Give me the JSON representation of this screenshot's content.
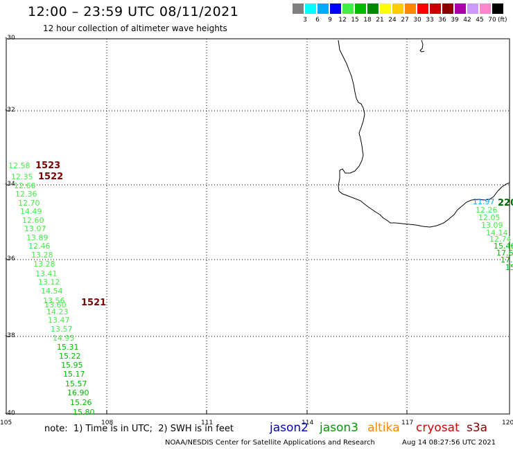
{
  "header": {
    "title": "12:00 – 23:59 UTC 08/11/2021",
    "subtitle": "12 hour collection of altimeter wave heights"
  },
  "legend": {
    "colors": [
      "#808080",
      "#00ffff",
      "#00aaff",
      "#0000ff",
      "#44ee44",
      "#00bb00",
      "#008800",
      "#ffff00",
      "#ffcc00",
      "#ff8800",
      "#ff0000",
      "#cc0000",
      "#880000",
      "#aa00aa",
      "#cc99ff",
      "#ff88cc",
      "#000000"
    ],
    "labels": [
      "3",
      "6",
      "9",
      "12",
      "15",
      "18",
      "21",
      "24",
      "27",
      "30",
      "33",
      "36",
      "39",
      "42",
      "45",
      "70"
    ],
    "unit": "(ft)"
  },
  "axes": {
    "lat_labels": [
      "-30",
      "-32",
      "-34",
      "-36",
      "-38",
      "-40"
    ],
    "lon_labels": [
      "105",
      "108",
      "111",
      "114",
      "117",
      "120"
    ]
  },
  "tracks": {
    "west": [
      {
        "v": "12.58",
        "c": "#44ee44"
      },
      {
        "v": "12.35",
        "c": "#44ee44"
      },
      {
        "v": "12.66",
        "c": "#44ee44"
      },
      {
        "v": "12.36",
        "c": "#44ee44"
      },
      {
        "v": "12.70",
        "c": "#44ee44"
      },
      {
        "v": "14.49",
        "c": "#44ee44"
      },
      {
        "v": "12.60",
        "c": "#44ee44"
      },
      {
        "v": "13.07",
        "c": "#44ee44"
      },
      {
        "v": "13.89",
        "c": "#44ee44"
      },
      {
        "v": "12.46",
        "c": "#44ee44"
      },
      {
        "v": "13.28",
        "c": "#44ee44"
      },
      {
        "v": "13.28",
        "c": "#44ee44"
      },
      {
        "v": "13.41",
        "c": "#44ee44"
      },
      {
        "v": "13.12",
        "c": "#44ee44"
      },
      {
        "v": "14.54",
        "c": "#44ee44"
      },
      {
        "v": "13.56",
        "c": "#44ee44"
      },
      {
        "v": "13.60",
        "c": "#44ee44"
      },
      {
        "v": "14.23",
        "c": "#44ee44"
      },
      {
        "v": "13.47",
        "c": "#44ee44"
      },
      {
        "v": "13.57",
        "c": "#44ee44"
      },
      {
        "v": "14.95",
        "c": "#44ee44"
      },
      {
        "v": "15.31",
        "c": "#00bb00"
      },
      {
        "v": "15.22",
        "c": "#00bb00"
      },
      {
        "v": "15.95",
        "c": "#00bb00"
      },
      {
        "v": "15.17",
        "c": "#00bb00"
      },
      {
        "v": "15.57",
        "c": "#00bb00"
      },
      {
        "v": "16.90",
        "c": "#00bb00"
      },
      {
        "v": "15.26",
        "c": "#00bb00"
      },
      {
        "v": "15.80",
        "c": "#00bb00"
      }
    ],
    "east": [
      {
        "v": "11.97",
        "c": "#00aaff"
      },
      {
        "v": "12.26",
        "c": "#44ee44"
      },
      {
        "v": "12.05",
        "c": "#44ee44"
      },
      {
        "v": "13.09",
        "c": "#44ee44"
      },
      {
        "v": "14.14",
        "c": "#44ee44"
      },
      {
        "v": "12.74",
        "c": "#44ee44"
      },
      {
        "v": "15.46",
        "c": "#00bb00"
      },
      {
        "v": "17.6",
        "c": "#00bb00"
      },
      {
        "v": "17.",
        "c": "#00bb00"
      },
      {
        "v": "15",
        "c": "#00bb00"
      }
    ],
    "timestamps": [
      {
        "t": "1523",
        "c": "#7a0000"
      },
      {
        "t": "1522",
        "c": "#7a0000"
      },
      {
        "t": "1521",
        "c": "#7a0000"
      },
      {
        "t": "220",
        "c": "#006600"
      }
    ]
  },
  "footer": {
    "note": "note:  1) Time is in UTC;  2) SWH is in feet",
    "satellites": [
      {
        "name": "jason2",
        "color": "#0000cc"
      },
      {
        "name": "jason3",
        "color": "#009900"
      },
      {
        "name": "altika",
        "color": "#ff8800"
      },
      {
        "name": "cryosat",
        "color": "#dd0000"
      },
      {
        "name": "s3a",
        "color": "#880000"
      }
    ],
    "credit": "NOAA/NESDIS Center for Satellite Applications and Research",
    "timestamp": "Aug 14 08:27:56 UTC 2021"
  }
}
